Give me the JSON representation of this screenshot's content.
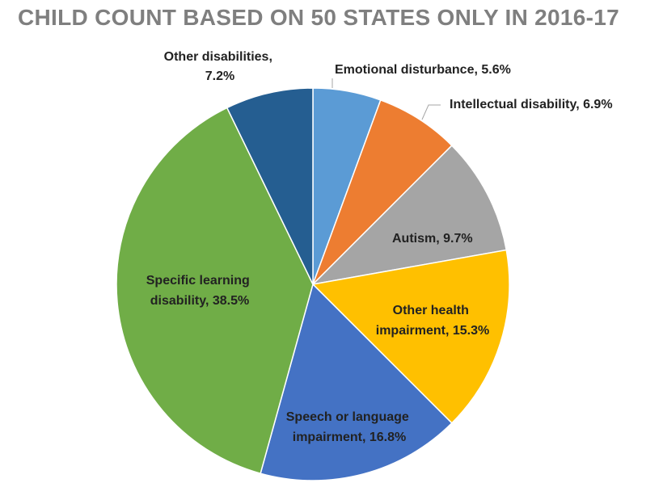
{
  "chart_data": {
    "type": "pie",
    "title": "CHILD COUNT BASED ON 50 STATES ONLY IN 2016-17",
    "slices": [
      {
        "name": "Emotional disturbance",
        "value": 5.6,
        "label": "Emotional disturbance, 5.6%",
        "color": "#5b9bd5"
      },
      {
        "name": "Intellectual disability",
        "value": 6.9,
        "label": "Intellectual disability, 6.9%",
        "color": "#ed7d31"
      },
      {
        "name": "Autism",
        "value": 9.7,
        "label": "Autism, 9.7%",
        "color": "#a5a5a5"
      },
      {
        "name": "Other health impairment",
        "value": 15.3,
        "label_lines": [
          "Other health",
          "impairment, 15.3%"
        ],
        "color": "#ffc000"
      },
      {
        "name": "Speech or language impairment",
        "value": 16.8,
        "label_lines": [
          "Speech or language",
          "impairment, 16.8%"
        ],
        "color": "#4472c4"
      },
      {
        "name": "Specific learning disability",
        "value": 38.5,
        "label_lines": [
          "Specific learning",
          "disability, 38.5%"
        ],
        "color": "#70ad47"
      },
      {
        "name": "Other disabilities",
        "value": 7.2,
        "label_lines": [
          "Other disabilities,",
          "7.2%"
        ],
        "color": "#255e91"
      }
    ]
  }
}
